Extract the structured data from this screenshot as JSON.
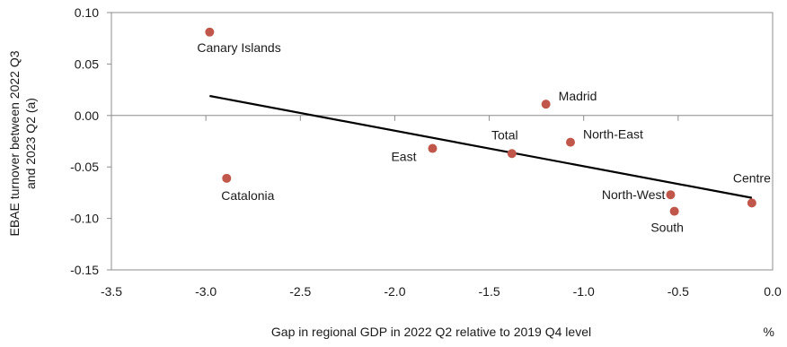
{
  "chart_data": {
    "type": "scatter",
    "title": "",
    "xlabel": "Gap in regional GDP in 2022 Q2 relative to 2019 Q4 level",
    "xunit": "%",
    "ylabel_lines": [
      "EBAE turnover between 2022 Q3",
      "and 2023 Q2 (a)"
    ],
    "xlim": [
      -3.5,
      0.0
    ],
    "ylim": [
      -0.15,
      0.1
    ],
    "xticks": [
      "-3.5",
      "-3.0",
      "-2.5",
      "-2.0",
      "-1.5",
      "-1.0",
      "-0.5",
      "0.0"
    ],
    "yticks": [
      "0.10",
      "0.05",
      "0.00",
      "-0.05",
      "-0.10",
      "-0.15"
    ],
    "grid": false,
    "point_color": "#c0574a",
    "trendline_color": "#000000",
    "points": [
      {
        "label": "Canary Islands",
        "x": -2.98,
        "y": 0.081
      },
      {
        "label": "Catalonia",
        "x": -2.89,
        "y": -0.061
      },
      {
        "label": "Madrid",
        "x": -1.2,
        "y": 0.011
      },
      {
        "label": "East",
        "x": -1.8,
        "y": -0.032
      },
      {
        "label": "Total",
        "x": -1.38,
        "y": -0.037
      },
      {
        "label": "North-East",
        "x": -1.07,
        "y": -0.026
      },
      {
        "label": "North-West",
        "x": -0.54,
        "y": -0.077
      },
      {
        "label": "South",
        "x": -0.52,
        "y": -0.093
      },
      {
        "label": "Centre",
        "x": -0.11,
        "y": -0.085
      }
    ],
    "trendline": {
      "x": [
        -2.98,
        -0.11
      ],
      "y": [
        0.019,
        -0.08
      ]
    }
  }
}
